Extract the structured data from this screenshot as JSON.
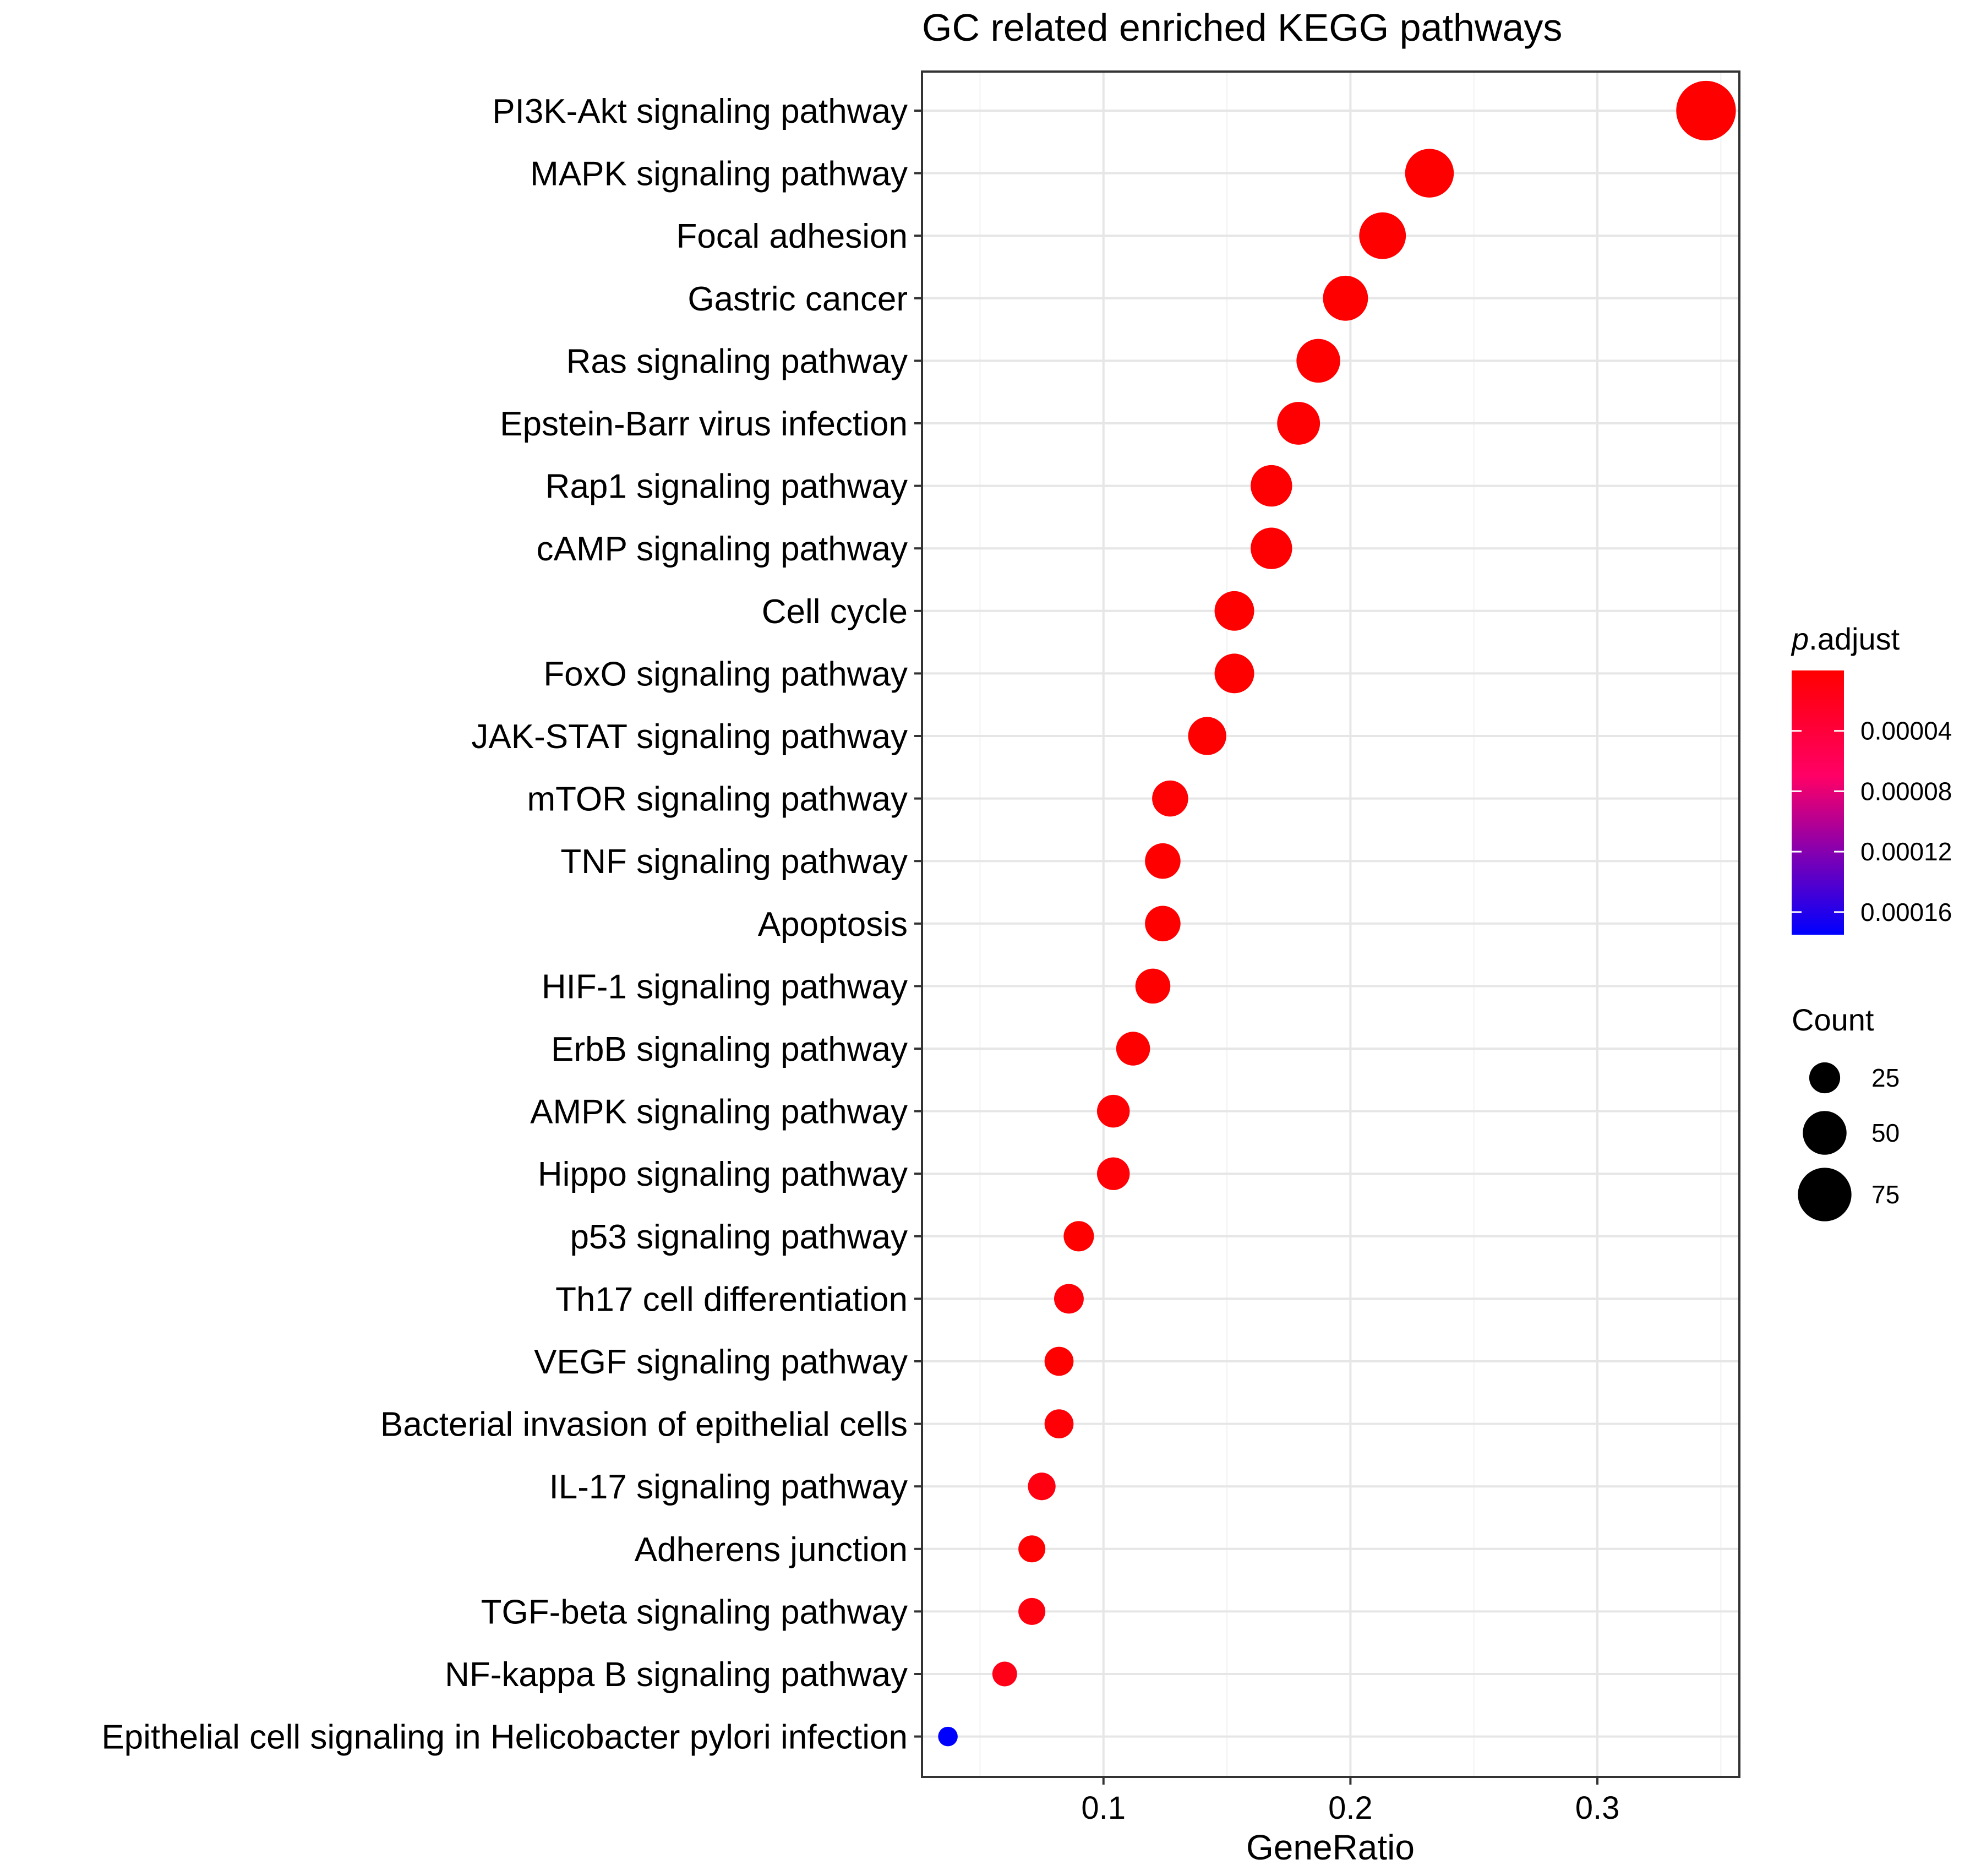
{
  "chart_data": {
    "type": "scatter",
    "title": "GC related enriched KEGG pathways",
    "xlabel": "GeneRatio",
    "ylabel": "",
    "xlim": [
      0.0265,
      0.3575
    ],
    "xticks": [
      0.1,
      0.2,
      0.3
    ],
    "xtick_labels": [
      "0.1",
      "0.2",
      "0.3"
    ],
    "grid": true,
    "points": [
      {
        "label": "PI3K-Akt signaling pathway",
        "x": 0.344,
        "count": 93,
        "p_adjust": 5e-07
      },
      {
        "label": "MAPK signaling pathway",
        "x": 0.232,
        "count": 62,
        "p_adjust": 8e-07
      },
      {
        "label": "Focal adhesion",
        "x": 0.213,
        "count": 57,
        "p_adjust": 5e-07
      },
      {
        "label": "Gastric cancer",
        "x": 0.198,
        "count": 53,
        "p_adjust": 5e-07
      },
      {
        "label": "Ras signaling pathway",
        "x": 0.187,
        "count": 50,
        "p_adjust": 8e-07
      },
      {
        "label": "Epstein-Barr virus infection",
        "x": 0.179,
        "count": 48,
        "p_adjust": 1.2e-06
      },
      {
        "label": "Rap1 signaling pathway",
        "x": 0.168,
        "count": 45,
        "p_adjust": 1.5e-06
      },
      {
        "label": "cAMP signaling pathway",
        "x": 0.168,
        "count": 45,
        "p_adjust": 1.5e-06
      },
      {
        "label": "Cell cycle",
        "x": 0.153,
        "count": 41,
        "p_adjust": 5e-07
      },
      {
        "label": "FoxO signaling pathway",
        "x": 0.153,
        "count": 41,
        "p_adjust": 5e-07
      },
      {
        "label": "JAK-STAT signaling pathway",
        "x": 0.142,
        "count": 38,
        "p_adjust": 1e-06
      },
      {
        "label": "mTOR signaling pathway",
        "x": 0.127,
        "count": 34,
        "p_adjust": 2e-06
      },
      {
        "label": "TNF signaling pathway",
        "x": 0.124,
        "count": 33,
        "p_adjust": 8e-07
      },
      {
        "label": "Apoptosis",
        "x": 0.124,
        "count": 33,
        "p_adjust": 1e-06
      },
      {
        "label": "HIF-1 signaling pathway",
        "x": 0.12,
        "count": 32,
        "p_adjust": 5e-07
      },
      {
        "label": "ErbB signaling pathway",
        "x": 0.112,
        "count": 30,
        "p_adjust": 5e-07
      },
      {
        "label": "AMPK signaling pathway",
        "x": 0.104,
        "count": 28,
        "p_adjust": 3e-06
      },
      {
        "label": "Hippo signaling pathway",
        "x": 0.104,
        "count": 28,
        "p_adjust": 5e-06
      },
      {
        "label": "p53 signaling pathway",
        "x": 0.09,
        "count": 24,
        "p_adjust": 5e-07
      },
      {
        "label": "Th17 cell differentiation",
        "x": 0.086,
        "count": 23,
        "p_adjust": 6e-06
      },
      {
        "label": "VEGF signaling pathway",
        "x": 0.082,
        "count": 22,
        "p_adjust": 1e-06
      },
      {
        "label": "Bacterial invasion of epithelial cells",
        "x": 0.082,
        "count": 22,
        "p_adjust": 4e-06
      },
      {
        "label": "IL-17 signaling pathway",
        "x": 0.075,
        "count": 20,
        "p_adjust": 1.2e-05
      },
      {
        "label": "Adherens junction",
        "x": 0.071,
        "count": 19,
        "p_adjust": 2e-06
      },
      {
        "label": "TGF-beta signaling pathway",
        "x": 0.071,
        "count": 19,
        "p_adjust": 1e-05
      },
      {
        "label": "NF-kappa B signaling pathway",
        "x": 0.06,
        "count": 16,
        "p_adjust": 1.5e-05
      },
      {
        "label": "Epithelial cell signaling in Helicobacter pylori infection",
        "x": 0.037,
        "count": 10,
        "p_adjust": 0.000175
      }
    ],
    "color_legend": {
      "title_italic": "p",
      "title_rest": ".adjust",
      "range": [
        0,
        0.000175
      ],
      "low_color": "#ff0000",
      "mid_color": "#ff0066",
      "high_color": "#0000ff",
      "ticks": [
        4e-05,
        8e-05,
        0.00012,
        0.00016
      ],
      "tick_labels": [
        "0.00004",
        "0.00008",
        "0.00012",
        "0.00016"
      ]
    },
    "size_legend": {
      "title": "Count",
      "entries": [
        {
          "value": 25,
          "label": "25"
        },
        {
          "value": 50,
          "label": "50"
        },
        {
          "value": 75,
          "label": "75"
        }
      ]
    }
  }
}
